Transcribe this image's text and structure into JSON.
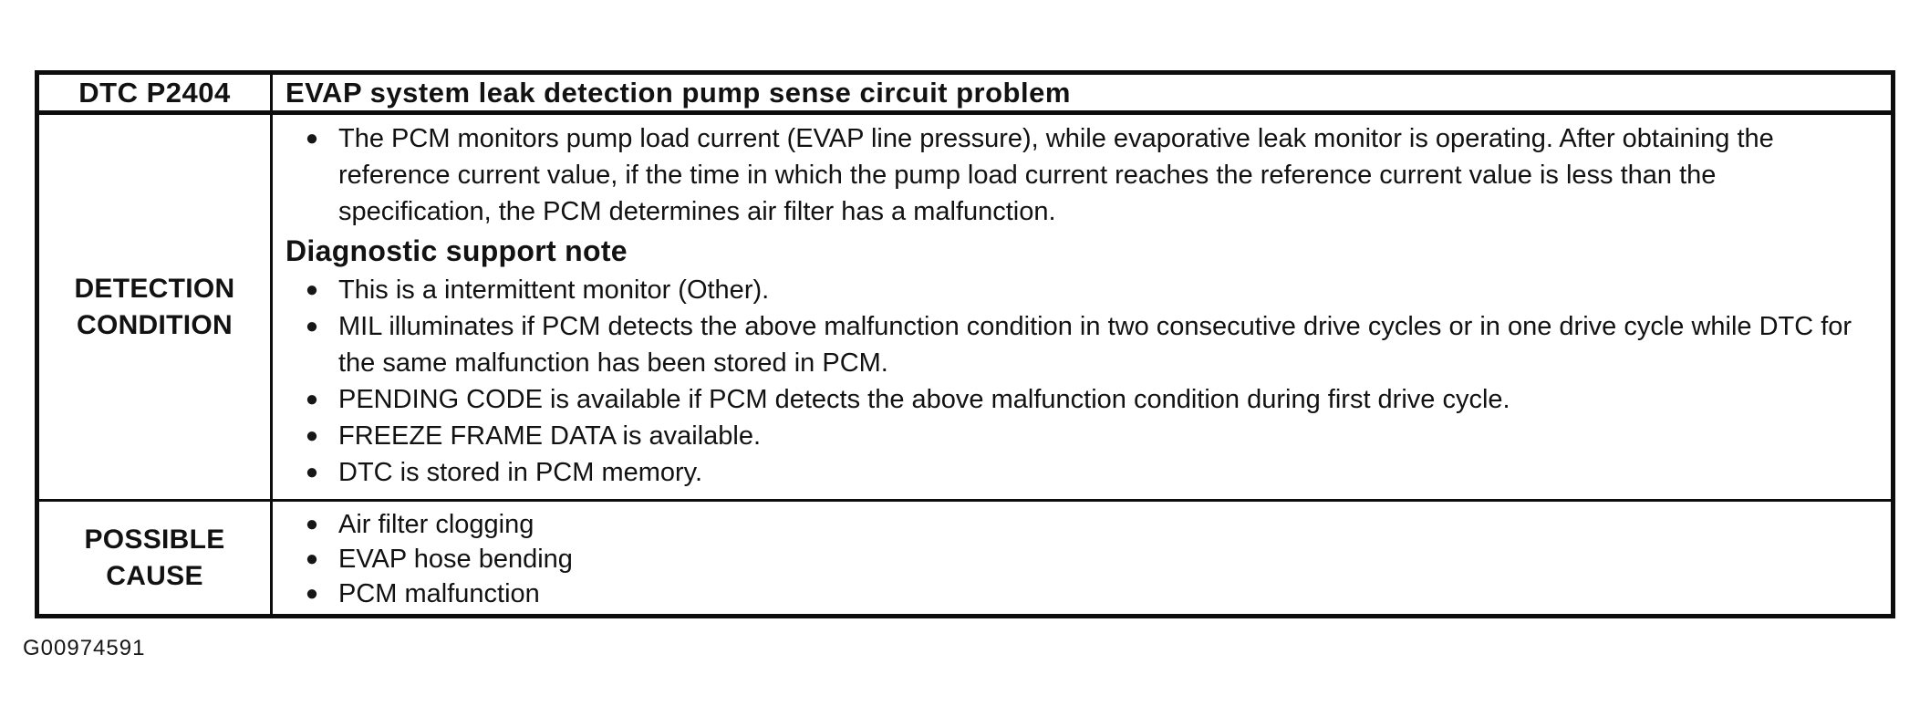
{
  "glyphs": {
    "bullet": "●"
  },
  "table": {
    "header": {
      "code": "DTC P2404",
      "title": "EVAP system leak detection pump sense circuit problem"
    },
    "detection": {
      "label": "DETECTION CONDITION",
      "intro_bullets": [
        "The PCM monitors pump load current (EVAP line pressure), while evaporative leak monitor is operating. After obtaining the reference current value, if the time in which the pump load current reaches the reference current value is less than the specification, the PCM determines air filter has a malfunction."
      ],
      "subheading": "Diagnostic support note",
      "support_bullets": [
        "This is a intermittent monitor (Other).",
        "MIL illuminates if PCM detects the above malfunction condition in two consecutive drive cycles or in one drive cycle while DTC for the same malfunction has been stored in PCM.",
        "PENDING CODE is available if PCM detects the above malfunction condition during first drive cycle.",
        "FREEZE FRAME DATA is available.",
        "DTC is stored in PCM memory."
      ]
    },
    "possible_cause": {
      "label": "POSSIBLE CAUSE",
      "bullets": [
        "Air filter clogging",
        "EVAP hose bending",
        "PCM malfunction"
      ]
    }
  },
  "footer": {
    "figure_id": "G00974591"
  }
}
